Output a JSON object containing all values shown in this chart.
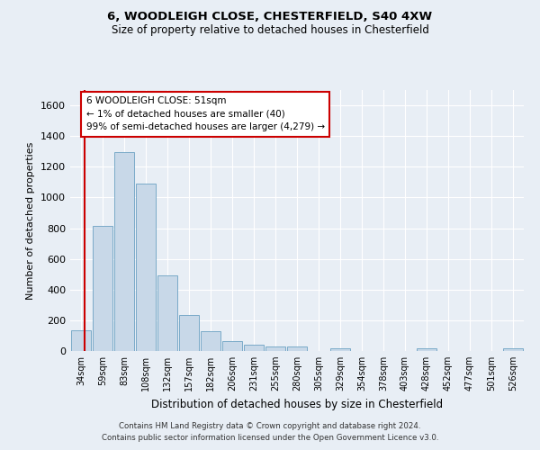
{
  "title_line1": "6, WOODLEIGH CLOSE, CHESTERFIELD, S40 4XW",
  "title_line2": "Size of property relative to detached houses in Chesterfield",
  "xlabel": "Distribution of detached houses by size in Chesterfield",
  "ylabel": "Number of detached properties",
  "bar_color": "#c8d8e8",
  "bar_edge_color": "#7aaac8",
  "categories": [
    "34sqm",
    "59sqm",
    "83sqm",
    "108sqm",
    "132sqm",
    "157sqm",
    "182sqm",
    "206sqm",
    "231sqm",
    "255sqm",
    "280sqm",
    "305sqm",
    "329sqm",
    "354sqm",
    "378sqm",
    "403sqm",
    "428sqm",
    "452sqm",
    "477sqm",
    "501sqm",
    "526sqm"
  ],
  "values": [
    135,
    815,
    1295,
    1090,
    495,
    232,
    130,
    67,
    40,
    28,
    28,
    0,
    18,
    0,
    0,
    0,
    18,
    0,
    0,
    0,
    18
  ],
  "ylim": [
    0,
    1700
  ],
  "yticks": [
    0,
    200,
    400,
    600,
    800,
    1000,
    1200,
    1400,
    1600
  ],
  "annotation_text": "6 WOODLEIGH CLOSE: 51sqm\n← 1% of detached houses are smaller (40)\n99% of semi-detached houses are larger (4,279) →",
  "vline_color": "#cc0000",
  "box_color": "#cc0000",
  "footer_line1": "Contains HM Land Registry data © Crown copyright and database right 2024.",
  "footer_line2": "Contains public sector information licensed under the Open Government Licence v3.0.",
  "background_color": "#e8eef5",
  "plot_bg_color": "#e8eef5",
  "grid_color": "#ffffff"
}
